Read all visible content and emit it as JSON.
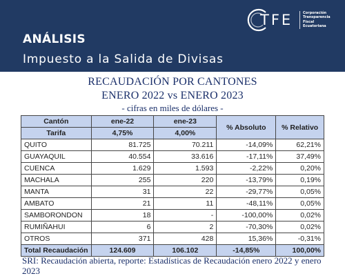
{
  "header": {
    "label": "ANÁLISIS",
    "title": "Impuesto a la Salida de Divisas",
    "background_color": "#213a63"
  },
  "logo": {
    "letters": "TFE",
    "caption_lines": [
      "Corporación",
      "Transparencia",
      "Fiscal",
      "Ecuatoriana"
    ]
  },
  "titles": {
    "line1": "RECAUDACIÓN POR CANTONES",
    "line2": "ENERO 2022 vs ENERO 2023",
    "subtitle": "- cifras en miles de dólares -"
  },
  "table": {
    "headers": [
      "Cantón",
      "ene-22",
      "ene-23",
      "% Absoluto",
      "% Relativo"
    ],
    "tarifa_row": [
      "Tarifa",
      "4,75%",
      "4,00%",
      "",
      ""
    ],
    "rows": [
      [
        "QUITO",
        "81.725",
        "70.211",
        "-14,09%",
        "62,21%"
      ],
      [
        "GUAYAQUIL",
        "40.554",
        "33.616",
        "-17,11%",
        "37,49%"
      ],
      [
        "CUENCA",
        "1.629",
        "1.593",
        "-2,22%",
        "0,20%"
      ],
      [
        "MACHALA",
        "255",
        "220",
        "-13,79%",
        "0,19%"
      ],
      [
        "MANTA",
        "31",
        "22",
        "-29,77%",
        "0,05%"
      ],
      [
        "AMBATO",
        "21",
        "11",
        "-48,11%",
        "0,05%"
      ],
      [
        "SAMBORONDON",
        "18",
        "-",
        "-100,00%",
        "0,02%"
      ],
      [
        "RUMIÑAHUI",
        "6",
        "2",
        "-70,30%",
        "0,02%"
      ],
      [
        "OTROS",
        "371",
        "428",
        "15,36%",
        "-0,31%"
      ]
    ],
    "total_row": [
      "Total Recaudación",
      "124.609",
      "106.102",
      "-14,85%",
      "100,00%"
    ],
    "header_fill_color": "#c5d3ee"
  },
  "source": {
    "text": "SRI: Recaudación abierta, reporte: Estadísticas de Recaudación enero 2022 y enero 2023"
  }
}
